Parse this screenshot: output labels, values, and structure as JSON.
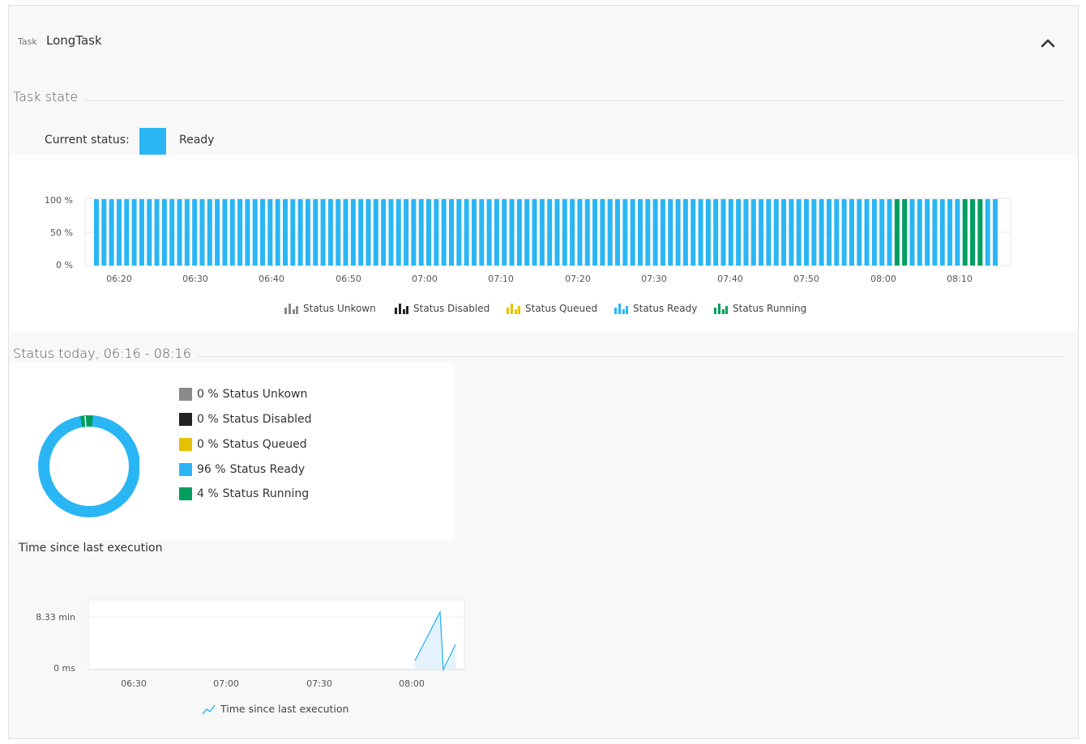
{
  "header": {
    "task_label": "Task",
    "task_name": "LongTask"
  },
  "task_state": {
    "title": "Task state",
    "current_status_label": "Current status:",
    "current_status_value": "Ready",
    "current_status_color": "#2ab6f4"
  },
  "status_chart_data": {
    "type": "bar",
    "yticks": [
      "100 %",
      "50 %",
      "0 %"
    ],
    "xticks": [
      "06:20",
      "06:30",
      "06:40",
      "06:50",
      "07:00",
      "07:10",
      "07:20",
      "07:30",
      "07:40",
      "07:50",
      "08:00",
      "08:10"
    ],
    "bar_count": 120,
    "running_bar_indices": [
      106,
      107,
      115,
      116,
      117
    ],
    "colors": {
      "unknown": "#8a8a8a",
      "disabled": "#222222",
      "queued": "#e6c100",
      "ready": "#2ab6f4",
      "running": "#009f5f"
    },
    "legend": [
      {
        "label": "Status Unkown",
        "color": "#8a8a8a"
      },
      {
        "label": "Status Disabled",
        "color": "#222222"
      },
      {
        "label": "Status Queued",
        "color": "#e6c100"
      },
      {
        "label": "Status Ready",
        "color": "#2ab6f4"
      },
      {
        "label": "Status Running",
        "color": "#009f5f"
      }
    ]
  },
  "status_today": {
    "title": "Status today, 06:16 - 08:16",
    "donut_chart_data": {
      "type": "pie",
      "slices": [
        {
          "pct_text": "0 %",
          "label": "Status Unkown",
          "value": 0,
          "color": "#8a8a8a"
        },
        {
          "pct_text": "0 %",
          "label": "Status Disabled",
          "value": 0,
          "color": "#222222"
        },
        {
          "pct_text": "0 %",
          "label": "Status Queued",
          "value": 0,
          "color": "#e6c100"
        },
        {
          "pct_text": "96 %",
          "label": "Status Ready",
          "value": 96,
          "color": "#2ab6f4"
        },
        {
          "pct_text": "4 %",
          "label": "Status Running",
          "value": 4,
          "color": "#009f5f"
        }
      ]
    }
  },
  "time_since": {
    "title": "Time since last execution",
    "chart_data": {
      "type": "area",
      "yticks": [
        "8.33 min",
        "0 ms"
      ],
      "xticks": [
        "06:30",
        "07:00",
        "07:30",
        "08:00"
      ],
      "series": [
        {
          "name": "Time since last execution",
          "color": "#2ab6f4"
        }
      ]
    }
  }
}
